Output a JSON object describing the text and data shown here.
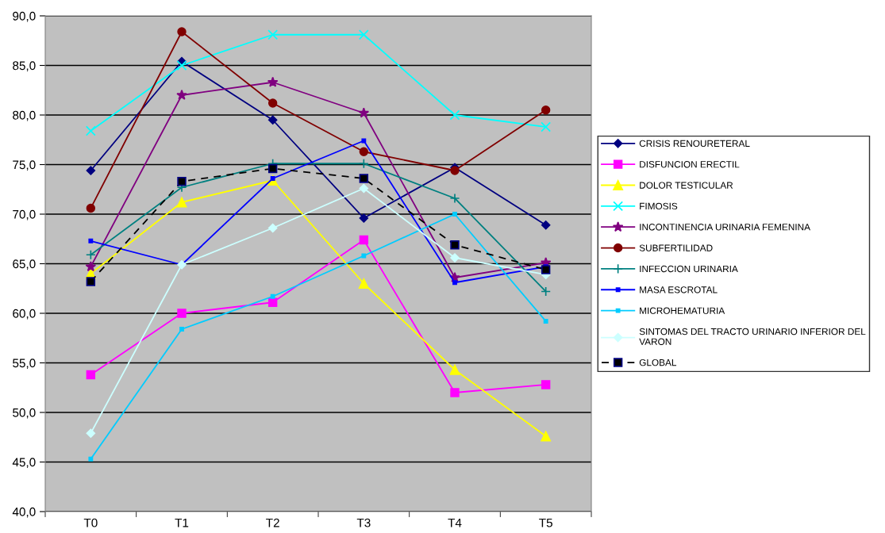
{
  "chart_data": {
    "type": "line",
    "categories": [
      "T0",
      "T1",
      "T2",
      "T3",
      "T4",
      "T5"
    ],
    "ylim": [
      40,
      90
    ],
    "yticks": [
      {
        "value": 40,
        "label": "40,0"
      },
      {
        "value": 45,
        "label": "45,0"
      },
      {
        "value": 50,
        "label": "50,0"
      },
      {
        "value": 55,
        "label": "55,0"
      },
      {
        "value": 60,
        "label": "60,0"
      },
      {
        "value": 65,
        "label": "65,0"
      },
      {
        "value": 70,
        "label": "70,0"
      },
      {
        "value": 75,
        "label": "75,0"
      },
      {
        "value": 80,
        "label": "80,0"
      },
      {
        "value": 85,
        "label": "85,0"
      },
      {
        "value": 90,
        "label": "90,0"
      }
    ],
    "grid": "y",
    "legend": "right",
    "series": [
      {
        "name": "CRISIS RENOURETERAL",
        "color": "#000080",
        "marker": "diamond",
        "values": [
          74.4,
          85.4,
          79.5,
          69.6,
          74.7,
          68.9
        ]
      },
      {
        "name": "DISFUNCION ERECTIL",
        "color": "#ff00ff",
        "marker": "square",
        "values": [
          53.8,
          60.0,
          61.1,
          67.4,
          52.0,
          52.8
        ]
      },
      {
        "name": "DOLOR TESTICULAR",
        "color": "#ffff00",
        "marker": "triangle",
        "values": [
          64.0,
          71.2,
          73.4,
          63.0,
          54.3,
          47.6
        ]
      },
      {
        "name": "FIMOSIS",
        "color": "#00ffff",
        "marker": "cross",
        "values": [
          78.4,
          85.0,
          88.1,
          88.1,
          80.0,
          78.8
        ]
      },
      {
        "name": "INCONTINENCIA URINARIA FEMENINA",
        "color": "#800080",
        "marker": "star",
        "values": [
          64.7,
          82.0,
          83.3,
          80.2,
          63.6,
          65.1
        ]
      },
      {
        "name": "SUBFERTILIDAD",
        "color": "#800000",
        "marker": "circle",
        "values": [
          70.6,
          88.4,
          81.2,
          76.3,
          74.4,
          80.5
        ]
      },
      {
        "name": "INFECCION URINARIA",
        "color": "#008080",
        "marker": "plus",
        "values": [
          65.9,
          72.7,
          75.1,
          75.1,
          71.6,
          62.2
        ]
      },
      {
        "name": "MASA ESCROTAL",
        "color": "#0000ff",
        "marker": "square",
        "values": [
          67.3,
          64.9,
          73.6,
          77.4,
          63.1,
          64.7
        ]
      },
      {
        "name": "MICROHEMATURIA",
        "color": "#00ccff",
        "marker": "square",
        "values": [
          45.3,
          58.4,
          61.7,
          65.8,
          70.0,
          59.2
        ]
      },
      {
        "name": "SINTOMAS DEL TRACTO URINARIO INFERIOR DEL\nVARON",
        "color": "#ccffff",
        "marker": "diamond",
        "values": [
          47.9,
          64.9,
          68.6,
          72.6,
          65.6,
          63.9
        ]
      },
      {
        "name": "GLOBAL",
        "color": "#000000",
        "marker": "square",
        "line_style": "dashed",
        "values": [
          63.2,
          73.3,
          74.6,
          73.6,
          66.9,
          64.4
        ]
      }
    ]
  }
}
